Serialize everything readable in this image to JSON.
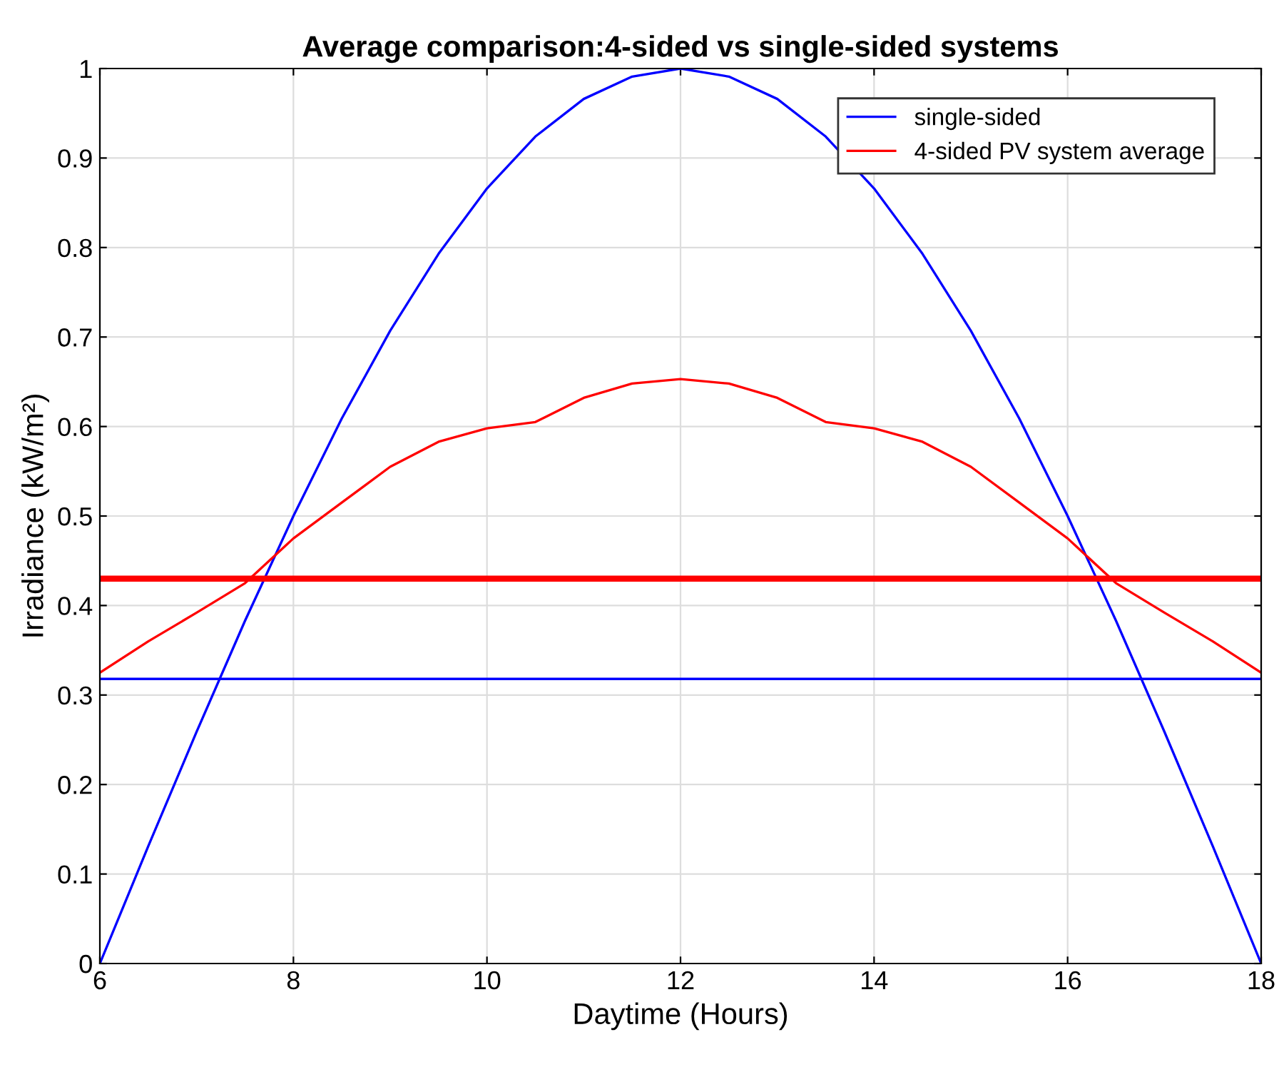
{
  "chart_data": {
    "type": "line",
    "title": "Average comparison:4-sided vs single-sided systems",
    "xlabel": "Daytime (Hours)",
    "ylabel": "Irradiance (kW/m²)",
    "x": [
      6,
      6.5,
      7,
      7.5,
      8,
      8.5,
      9,
      9.5,
      10,
      10.5,
      11,
      11.5,
      12,
      12.5,
      13,
      13.5,
      14,
      14.5,
      15,
      15.5,
      16,
      16.5,
      17,
      17.5,
      18
    ],
    "series": [
      {
        "name": "single-sided",
        "color": "#0000ff",
        "values": [
          0,
          0.131,
          0.259,
          0.383,
          0.5,
          0.609,
          0.707,
          0.793,
          0.866,
          0.924,
          0.966,
          0.991,
          1,
          0.991,
          0.966,
          0.924,
          0.866,
          0.793,
          0.707,
          0.609,
          0.5,
          0.383,
          0.259,
          0.131,
          0
        ]
      },
      {
        "name": "4-sided PV system average",
        "color": "#ff0000",
        "values": [
          0.325,
          0.36,
          0.392,
          0.425,
          0.475,
          0.515,
          0.555,
          0.583,
          0.598,
          0.605,
          0.632,
          0.648,
          0.653,
          0.648,
          0.632,
          0.605,
          0.598,
          0.583,
          0.555,
          0.515,
          0.475,
          0.425,
          0.392,
          0.36,
          0.325
        ]
      }
    ],
    "ref_lines": [
      {
        "axis": "y",
        "value": 0.43,
        "color": "#ff0000"
      },
      {
        "axis": "y",
        "value": 0.318,
        "color": "#0000ff"
      }
    ],
    "xlim": [
      6,
      18
    ],
    "xticks": [
      6,
      8,
      10,
      12,
      14,
      16,
      18
    ],
    "ylim": [
      0,
      1
    ],
    "yticks": [
      0,
      0.1,
      0.2,
      0.3,
      0.4,
      0.5,
      0.6,
      0.7,
      0.8,
      0.9,
      1
    ],
    "grid": true,
    "legend": "top right",
    "marker": "none",
    "line_style": "solid"
  }
}
